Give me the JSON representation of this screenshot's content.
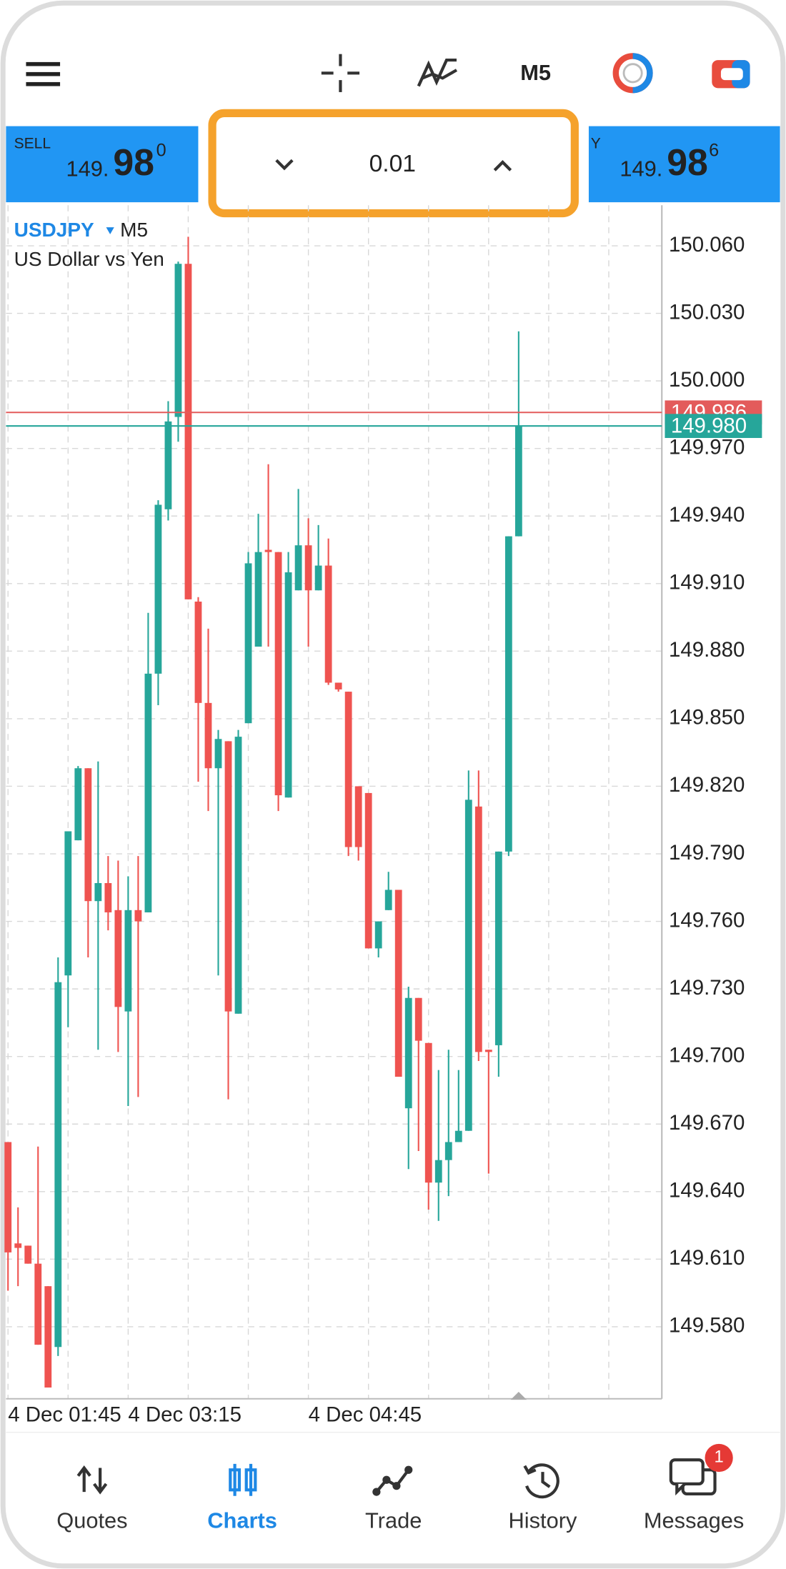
{
  "toolbar": {
    "timeframe": "M5"
  },
  "sell": {
    "label": "SELL",
    "price": "149.",
    "big": "98",
    "sup": "0"
  },
  "buy": {
    "label": "Y",
    "price": "149.",
    "big": "98",
    "sup": "6"
  },
  "lot": "0.01",
  "chart_data": {
    "type": "candlestick",
    "symbol": "USDJPY",
    "timeframe": "M5",
    "description": "US Dollar vs Yen",
    "up_color": "#26a69a",
    "down_color": "#ef5350",
    "categories": [
      null,
      null,
      null,
      null,
      null,
      null,
      "4 Dec 01:45",
      null,
      null,
      null,
      null,
      null,
      null,
      null,
      null,
      null,
      null,
      null,
      "4 Dec 03:15",
      null,
      null,
      null,
      null,
      null,
      null,
      null,
      null,
      null,
      null,
      null,
      null,
      null,
      null,
      null,
      null,
      null,
      "4 Dec 04:45",
      null,
      null,
      null,
      null,
      null,
      null,
      null,
      null,
      null,
      null,
      null,
      null,
      null,
      null,
      null
    ],
    "open": [
      149.662,
      149.617,
      149.616,
      149.608,
      149.598,
      149.571,
      149.736,
      149.796,
      149.828,
      149.769,
      149.777,
      149.765,
      149.72,
      149.765,
      149.764,
      149.87,
      149.943,
      149.984,
      150.052,
      149.902,
      149.857,
      149.828,
      149.84,
      149.719,
      149.848,
      149.882,
      149.925,
      149.924,
      149.815,
      149.907,
      149.927,
      149.907,
      149.918,
      149.866,
      149.862,
      149.82,
      149.817,
      149.748,
      149.765,
      149.774,
      149.677,
      149.726,
      149.706,
      149.644,
      149.654,
      149.662,
      149.667,
      149.811,
      149.703,
      149.705,
      149.791,
      149.931
    ],
    "high": [
      149.662,
      149.633,
      149.616,
      149.66,
      149.598,
      149.744,
      149.8,
      149.829,
      149.828,
      149.831,
      149.789,
      149.787,
      149.78,
      149.789,
      149.897,
      149.947,
      149.991,
      150.053,
      150.064,
      149.904,
      149.89,
      149.845,
      149.84,
      149.845,
      149.924,
      149.941,
      149.963,
      149.924,
      149.924,
      149.952,
      149.939,
      149.936,
      149.93,
      149.866,
      149.862,
      149.82,
      149.817,
      149.76,
      149.782,
      149.774,
      149.731,
      149.726,
      149.706,
      149.694,
      149.703,
      149.694,
      149.827,
      149.827,
      149.703,
      149.791,
      149.931,
      150.022
    ],
    "low": [
      149.596,
      149.598,
      149.608,
      149.572,
      149.553,
      149.567,
      149.713,
      149.796,
      149.744,
      149.703,
      149.756,
      149.702,
      149.678,
      149.682,
      149.764,
      149.856,
      149.938,
      149.973,
      149.903,
      149.822,
      149.809,
      149.736,
      149.681,
      149.719,
      149.848,
      149.882,
      149.882,
      149.809,
      149.815,
      149.907,
      149.882,
      149.907,
      149.865,
      149.862,
      149.789,
      149.787,
      149.748,
      149.744,
      149.765,
      149.691,
      149.65,
      149.658,
      149.632,
      149.627,
      149.638,
      149.662,
      149.667,
      149.698,
      149.648,
      149.691,
      149.789,
      149.931
    ],
    "close": [
      149.613,
      149.615,
      149.608,
      149.572,
      149.553,
      149.733,
      149.8,
      149.828,
      149.769,
      149.777,
      149.764,
      149.722,
      149.765,
      149.76,
      149.87,
      149.945,
      149.982,
      150.052,
      149.903,
      149.857,
      149.828,
      149.841,
      149.72,
      149.842,
      149.919,
      149.924,
      149.924,
      149.816,
      149.915,
      149.927,
      149.907,
      149.918,
      149.866,
      149.863,
      149.793,
      149.793,
      149.748,
      149.76,
      149.774,
      149.691,
      149.726,
      149.707,
      149.644,
      149.654,
      149.662,
      149.667,
      149.814,
      149.702,
      149.702,
      149.791,
      149.931,
      149.98
    ],
    "ylim": [
      149.548,
      150.078
    ],
    "yticks": [
      {
        "value": 150.06,
        "label": "150.060"
      },
      {
        "value": 150.03,
        "label": "150.030"
      },
      {
        "value": 150.0,
        "label": "150.000"
      },
      {
        "value": 149.97,
        "label": "149.970"
      },
      {
        "value": 149.94,
        "label": "149.940"
      },
      {
        "value": 149.91,
        "label": "149.910"
      },
      {
        "value": 149.88,
        "label": "149.880"
      },
      {
        "value": 149.85,
        "label": "149.850"
      },
      {
        "value": 149.82,
        "label": "149.820"
      },
      {
        "value": 149.79,
        "label": "149.790"
      },
      {
        "value": 149.76,
        "label": "149.760"
      },
      {
        "value": 149.73,
        "label": "149.730"
      },
      {
        "value": 149.7,
        "label": "149.700"
      },
      {
        "value": 149.67,
        "label": "149.670"
      },
      {
        "value": 149.64,
        "label": "149.640"
      },
      {
        "value": 149.61,
        "label": "149.610"
      },
      {
        "value": 149.58,
        "label": "149.580"
      }
    ],
    "grid": true,
    "ask_line": {
      "value": 149.986,
      "label": "149.986",
      "color": "#e35b5b"
    },
    "bid_line": {
      "value": 149.98,
      "label": "149.980",
      "color": "#26a69a"
    }
  },
  "nav": {
    "tabs": [
      "Quotes",
      "Charts",
      "Trade",
      "History",
      "Messages"
    ],
    "active": "Charts",
    "badge": "1"
  }
}
